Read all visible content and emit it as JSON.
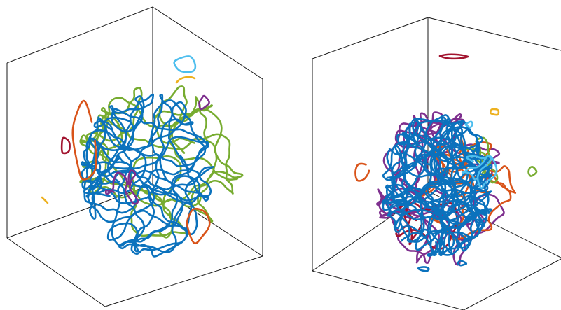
{
  "figure": {
    "panels": [
      {
        "name": "left-panel",
        "palette": {
          "blue": "#0b72bd",
          "green": "#77ac30",
          "orange": "#d95319",
          "purple": "#7e2f8e",
          "red": "#a2142f",
          "cyan": "#4dbeee",
          "yellow": "#edb120"
        }
      },
      {
        "name": "right-panel",
        "palette": {
          "blue": "#0b72bd",
          "green": "#77ac30",
          "orange": "#d95319",
          "purple": "#7e2f8e",
          "red": "#a2142f",
          "cyan": "#4dbeee",
          "yellow": "#edb120"
        }
      }
    ]
  }
}
